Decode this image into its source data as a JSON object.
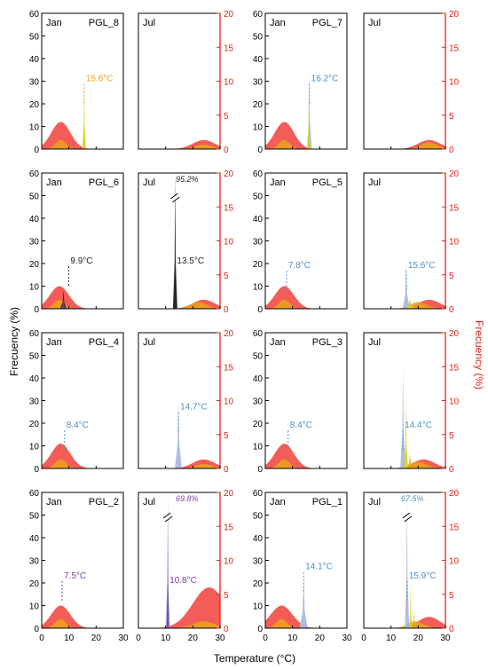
{
  "colors": {
    "frame": "#000000",
    "right_axis": "#e2231a",
    "air": "#f2413a",
    "sat": "#e8a317",
    "sat_peak": "#d6d21e",
    "blue": "#a7b6df",
    "black": "#111111",
    "purple": "#7b3fa0",
    "label_blue": "#4a90c8",
    "label_dark": "#222222"
  },
  "axes": {
    "left_title": "Frecuency (%)",
    "right_title": "Frecuency (%)",
    "x_title": "Temperature (°C)",
    "left_ticks": [
      "0",
      "10",
      "20",
      "30",
      "40",
      "50",
      "60"
    ],
    "right_ticks": [
      "0",
      "5",
      "10",
      "15",
      "20"
    ],
    "x_ticks": [
      "0",
      "10",
      "20",
      "30"
    ]
  },
  "chart_data": [
    {
      "type": "area",
      "site": "PGL_8",
      "month": "Jan",
      "row": 0,
      "col": 0,
      "label": "15.6°C",
      "label_temp": 15.6,
      "label_pct": 30,
      "label_color": "sat",
      "peaks": [
        {
          "t": 15.6,
          "v": 30,
          "w": 0.7,
          "c": "sat_peak"
        }
      ],
      "air": {
        "center": 7,
        "height": 12,
        "width": 3.5
      },
      "sat": {
        "center": 7,
        "height": 4,
        "width": 2
      }
    },
    {
      "type": "area",
      "site": "",
      "month": "Jul",
      "row": 0,
      "col": 1,
      "label": "",
      "peaks": [],
      "air": {
        "center": 24,
        "height": 4,
        "width": 4
      },
      "sat": {
        "center": 24,
        "height": 2,
        "width": 3
      }
    },
    {
      "type": "area",
      "site": "PGL_7",
      "month": "Jan",
      "row": 0,
      "col": 2,
      "label": "16.2°C",
      "label_temp": 16.2,
      "label_pct": 30,
      "label_color": "label_blue",
      "peaks": [
        {
          "t": 16.2,
          "v": 34,
          "w": 0.9,
          "c": "blue"
        },
        {
          "t": 16,
          "v": 25,
          "w": 0.6,
          "c": "sat_peak"
        }
      ],
      "air": {
        "center": 7,
        "height": 12,
        "width": 3.5
      },
      "sat": {
        "center": 7,
        "height": 4,
        "width": 2
      }
    },
    {
      "type": "area",
      "site": "",
      "month": "Jul",
      "row": 0,
      "col": 3,
      "label": "",
      "peaks": [],
      "air": {
        "center": 24,
        "height": 4,
        "width": 4
      },
      "sat": {
        "center": 24,
        "height": 3,
        "width": 3
      }
    },
    {
      "type": "area",
      "site": "PGL_6",
      "month": "Jan",
      "row": 1,
      "col": 0,
      "label": "9.9°C",
      "label_temp": 9.9,
      "label_pct": 20,
      "label_color": "label_dark",
      "peaks": [
        {
          "t": 8,
          "v": 8,
          "w": 1.2,
          "c": "black"
        },
        {
          "t": 8,
          "v": 5,
          "w": 1,
          "c": "purple"
        }
      ],
      "air": {
        "center": 6.5,
        "height": 10,
        "width": 3.5
      },
      "sat": {
        "center": 6.5,
        "height": 4,
        "width": 2
      }
    },
    {
      "type": "area",
      "site": "",
      "month": "Jul",
      "row": 1,
      "col": 1,
      "label": "13.5°C",
      "label_temp": 13.5,
      "label_pct": 20,
      "label_color": "label_dark",
      "break_label": "95.2%",
      "peaks": [
        {
          "t": 13.5,
          "v": 60,
          "w": 0.8,
          "c": "black",
          "break": true
        }
      ],
      "air": {
        "center": 24,
        "height": 4,
        "width": 4
      },
      "sat": {
        "center": 22,
        "height": 3,
        "width": 3
      }
    },
    {
      "type": "area",
      "site": "PGL_5",
      "month": "Jan",
      "row": 1,
      "col": 2,
      "label": "7.8°C",
      "label_temp": 7.8,
      "label_pct": 18,
      "label_color": "label_blue",
      "peaks": [],
      "air": {
        "center": 7,
        "height": 10,
        "width": 3.5
      },
      "sat": {
        "center": 7,
        "height": 4,
        "width": 2
      }
    },
    {
      "type": "area",
      "site": "",
      "month": "Jul",
      "row": 1,
      "col": 3,
      "label": "15.6°C",
      "label_temp": 15.6,
      "label_pct": 18,
      "label_color": "label_blue",
      "peaks": [
        {
          "t": 15.6,
          "v": 19,
          "w": 1.3,
          "c": "blue"
        },
        {
          "t": 17,
          "v": 5,
          "w": 1.5,
          "c": "sat_peak"
        }
      ],
      "air": {
        "center": 24,
        "height": 4,
        "width": 4
      },
      "sat": {
        "center": 20,
        "height": 3,
        "width": 3
      }
    },
    {
      "type": "area",
      "site": "PGL_4",
      "month": "Jan",
      "row": 2,
      "col": 0,
      "label": "8.4°C",
      "label_temp": 8.4,
      "label_pct": 18,
      "label_color": "label_blue",
      "peaks": [],
      "air": {
        "center": 7,
        "height": 11,
        "width": 3.5
      },
      "sat": {
        "center": 7,
        "height": 4,
        "width": 2
      }
    },
    {
      "type": "area",
      "site": "",
      "month": "Jul",
      "row": 2,
      "col": 1,
      "label": "14.7°C",
      "label_temp": 14.7,
      "label_pct": 26,
      "label_color": "label_blue",
      "peaks": [
        {
          "t": 14.7,
          "v": 30,
          "w": 1.3,
          "c": "blue"
        }
      ],
      "air": {
        "center": 24,
        "height": 4,
        "width": 4
      },
      "sat": {
        "center": 24,
        "height": 2,
        "width": 3
      }
    },
    {
      "type": "area",
      "site": "PGL_3",
      "month": "Jan",
      "row": 2,
      "col": 2,
      "label": "8.4°C",
      "label_temp": 8.4,
      "label_pct": 18,
      "label_color": "label_blue",
      "peaks": [],
      "air": {
        "center": 7,
        "height": 11,
        "width": 3.5
      },
      "sat": {
        "center": 7,
        "height": 4,
        "width": 2
      }
    },
    {
      "type": "area",
      "site": "",
      "month": "Jul",
      "row": 2,
      "col": 3,
      "label": "14.4°C",
      "label_temp": 14.4,
      "label_pct": 18,
      "label_color": "label_blue",
      "peaks": [
        {
          "t": 14.4,
          "v": 44,
          "w": 1,
          "c": "blue"
        },
        {
          "t": 15.5,
          "v": 31,
          "w": 0.8,
          "c": "sat_peak"
        },
        {
          "t": 17,
          "v": 6,
          "w": 1.4,
          "c": "sat"
        }
      ],
      "air": {
        "center": 22,
        "height": 4,
        "width": 4
      },
      "sat": {
        "center": 20,
        "height": 3,
        "width": 3
      }
    },
    {
      "type": "area",
      "site": "PGL_2",
      "month": "Jan",
      "row": 3,
      "col": 0,
      "label": "7.5°C",
      "label_temp": 7.5,
      "label_pct": 22,
      "label_color": "purple",
      "peaks": [],
      "air": {
        "center": 7,
        "height": 10,
        "width": 3.5
      },
      "sat": {
        "center": 7,
        "height": 4,
        "width": 2
      }
    },
    {
      "type": "area",
      "site": "",
      "month": "Jul",
      "row": 3,
      "col": 1,
      "label": "10.8°C",
      "label_temp": 10.8,
      "label_pct": 20,
      "label_color": "purple",
      "break_label": "69.8%",
      "peaks": [
        {
          "t": 10.8,
          "v": 60,
          "w": 0.8,
          "c": "blue",
          "break": true
        },
        {
          "t": 10.8,
          "v": 52,
          "w": 0.5,
          "c": "purple"
        }
      ],
      "air": {
        "center": 26,
        "height": 18,
        "width": 6
      },
      "sat": {
        "center": 24,
        "height": 3,
        "width": 4
      }
    },
    {
      "type": "area",
      "site": "PGL_1",
      "month": "Jan",
      "row": 3,
      "col": 2,
      "label": "14.1°C",
      "label_temp": 14.1,
      "label_pct": 26,
      "label_color": "label_blue",
      "peaks": [
        {
          "t": 14.1,
          "v": 22,
          "w": 1.5,
          "c": "blue"
        }
      ],
      "air": {
        "center": 6,
        "height": 10,
        "width": 4
      },
      "sat": {
        "center": 6,
        "height": 4,
        "width": 2
      }
    },
    {
      "type": "area",
      "site": "",
      "month": "Jul",
      "row": 3,
      "col": 3,
      "label": "15.9°C",
      "label_temp": 15.9,
      "label_pct": 22,
      "label_color": "label_blue",
      "break_label": "67.5%",
      "peaks": [
        {
          "t": 15.9,
          "v": 60,
          "w": 0.8,
          "c": "blue",
          "break": true
        },
        {
          "t": 17.2,
          "v": 20,
          "w": 0.6,
          "c": "sat_peak"
        },
        {
          "t": 18.5,
          "v": 8,
          "w": 0.8,
          "c": "sat"
        }
      ],
      "air": {
        "center": 24,
        "height": 5,
        "width": 4
      },
      "sat": {
        "center": 19,
        "height": 3,
        "width": 3
      }
    }
  ]
}
